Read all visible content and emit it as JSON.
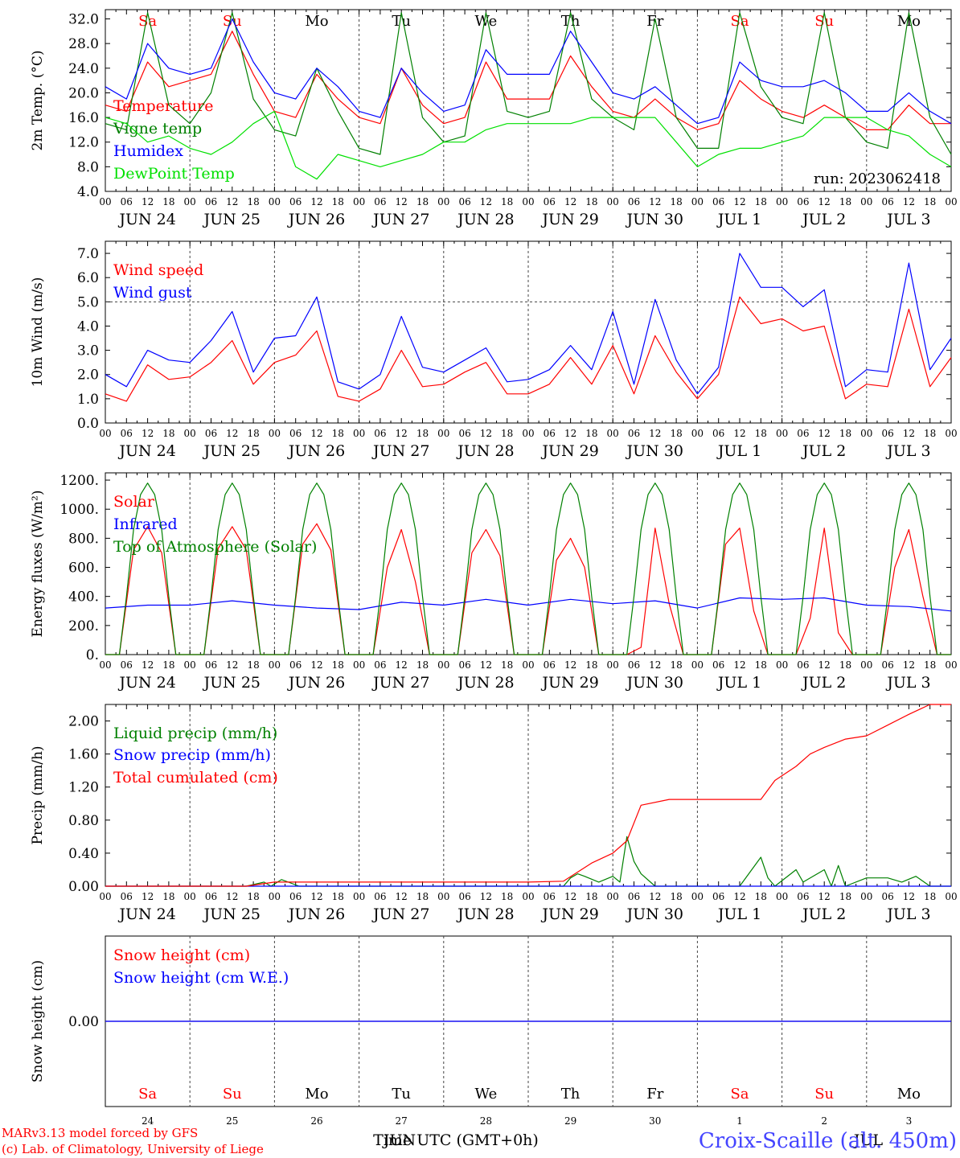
{
  "footer": {
    "model": "MARv3.13 model forced by GFS",
    "credit": "(c) Lab. of Climatology, University of Liege",
    "xlabel": "Time UTC (GMT+0h)",
    "station": "Croix-Scaille (alt. 450m)",
    "month_jun": "JUN",
    "month_jul": "JUL"
  },
  "colors": {
    "red": "#ff0000",
    "blue": "#0000ff",
    "green": "#008000",
    "lightgreen": "#00e000",
    "weekend": "#ff0000"
  },
  "hours_labels": [
    "00",
    "06",
    "12",
    "18"
  ],
  "date_labels": [
    "JUN 24",
    "JUN 25",
    "JUN 26",
    "JUN 27",
    "JUN 28",
    "JUN 29",
    "JUN 30",
    "JUL  1",
    "JUL  2",
    "JUL  3"
  ],
  "days_short": [
    "Sa",
    "Su",
    "Mo",
    "Tu",
    "We",
    "Th",
    "Fr",
    "Sa",
    "Su",
    "Mo"
  ],
  "weekend_flags": [
    true,
    true,
    false,
    false,
    false,
    false,
    false,
    true,
    true,
    false
  ],
  "day_numbers": [
    "24",
    "25",
    "26",
    "27",
    "28",
    "29",
    "30",
    "1",
    "2",
    "3"
  ],
  "chart_data": [
    {
      "id": "temperature",
      "type": "line",
      "ylabel": "2m Temp. (°C)",
      "ylim": [
        4,
        33.5
      ],
      "yticks": [
        "4.0",
        "8.0",
        "12.0",
        "16.0",
        "20.0",
        "24.0",
        "28.0",
        "32.0"
      ],
      "x_unit": "hours since JUN 24 00 UTC",
      "xlim": [
        0,
        240
      ],
      "run_label": "run: 2023062418",
      "series": [
        {
          "name": "Temperature",
          "color": "#ff0000",
          "x": [
            0,
            6,
            12,
            18,
            24,
            30,
            36,
            42,
            48,
            54,
            60,
            66,
            72,
            78,
            84,
            90,
            96,
            102,
            108,
            114,
            120,
            126,
            132,
            138,
            144,
            150,
            156,
            162,
            168,
            174,
            180,
            186,
            192,
            198,
            204,
            210,
            216,
            222,
            228,
            234,
            240
          ],
          "y": [
            18,
            17,
            25,
            21,
            22,
            23,
            30,
            23,
            17,
            16,
            23,
            19,
            16,
            15,
            24,
            18,
            15,
            16,
            25,
            19,
            19,
            19,
            26,
            21,
            17,
            16,
            19,
            16,
            14,
            15,
            22,
            19,
            17,
            16,
            18,
            16,
            14,
            14,
            18,
            15,
            15
          ]
        },
        {
          "name": "Vigne temp",
          "color": "#008000",
          "x": [
            0,
            6,
            12,
            18,
            24,
            30,
            36,
            42,
            48,
            54,
            60,
            66,
            72,
            78,
            84,
            90,
            96,
            102,
            108,
            114,
            120,
            126,
            132,
            138,
            144,
            150,
            156,
            162,
            168,
            174,
            180,
            186,
            192,
            198,
            204,
            210,
            216,
            222,
            228,
            234,
            240
          ],
          "y": [
            15,
            14,
            33,
            18,
            15,
            20,
            33,
            19,
            14,
            13,
            24,
            17,
            11,
            10,
            33,
            16,
            12,
            13,
            33,
            17,
            16,
            17,
            33,
            19,
            16,
            14,
            32,
            16,
            11,
            11,
            33,
            21,
            16,
            15,
            33,
            16,
            12,
            11,
            33,
            16,
            10
          ]
        },
        {
          "name": "Humidex",
          "color": "#0000ff",
          "x": [
            0,
            6,
            12,
            18,
            24,
            30,
            36,
            42,
            48,
            54,
            60,
            66,
            72,
            78,
            84,
            90,
            96,
            102,
            108,
            114,
            120,
            126,
            132,
            138,
            144,
            150,
            156,
            162,
            168,
            174,
            180,
            186,
            192,
            198,
            204,
            210,
            216,
            222,
            228,
            234,
            240
          ],
          "y": [
            21,
            19,
            28,
            24,
            23,
            24,
            32,
            25,
            20,
            19,
            24,
            21,
            17,
            16,
            24,
            20,
            17,
            18,
            27,
            23,
            23,
            23,
            30,
            25,
            20,
            19,
            21,
            18,
            15,
            16,
            25,
            22,
            21,
            21,
            22,
            20,
            17,
            17,
            20,
            17,
            15
          ]
        },
        {
          "name": "DewPoint Temp",
          "color": "#00e000",
          "x": [
            0,
            6,
            12,
            18,
            24,
            30,
            36,
            42,
            48,
            54,
            60,
            66,
            72,
            78,
            84,
            90,
            96,
            102,
            108,
            114,
            120,
            126,
            132,
            138,
            144,
            150,
            156,
            162,
            168,
            174,
            180,
            186,
            192,
            198,
            204,
            210,
            216,
            222,
            228,
            234,
            240
          ],
          "y": [
            16,
            15,
            12,
            13,
            11,
            10,
            12,
            15,
            17,
            8,
            6,
            10,
            9,
            8,
            9,
            10,
            12,
            12,
            14,
            15,
            15,
            15,
            15,
            16,
            16,
            16,
            16,
            12,
            8,
            10,
            11,
            11,
            12,
            13,
            16,
            16,
            16,
            14,
            13,
            10,
            8
          ]
        }
      ]
    },
    {
      "id": "wind",
      "type": "line",
      "ylabel": "10m Wind (m/s)",
      "ylim": [
        0,
        7.5
      ],
      "yticks": [
        "0.0",
        "1.0",
        "2.0",
        "3.0",
        "4.0",
        "5.0",
        "6.0",
        "7.0"
      ],
      "ref_line": 5.0,
      "x_unit": "hours since JUN 24 00 UTC",
      "xlim": [
        0,
        240
      ],
      "series": [
        {
          "name": "Wind speed",
          "color": "#ff0000",
          "x": [
            0,
            6,
            12,
            18,
            24,
            30,
            36,
            42,
            48,
            54,
            60,
            66,
            72,
            78,
            84,
            90,
            96,
            102,
            108,
            114,
            120,
            126,
            132,
            138,
            144,
            150,
            156,
            162,
            168,
            174,
            180,
            186,
            192,
            198,
            204,
            210,
            216,
            222,
            228,
            234,
            240
          ],
          "y": [
            1.2,
            0.9,
            2.4,
            1.8,
            1.9,
            2.5,
            3.4,
            1.6,
            2.5,
            2.8,
            3.8,
            1.1,
            0.9,
            1.4,
            3.0,
            1.5,
            1.6,
            2.1,
            2.5,
            1.2,
            1.2,
            1.6,
            2.7,
            1.6,
            3.2,
            1.2,
            3.6,
            2.1,
            1.0,
            2.0,
            5.2,
            4.1,
            4.3,
            3.8,
            4.0,
            1.0,
            1.6,
            1.5,
            4.7,
            1.5,
            2.7
          ]
        },
        {
          "name": "Wind gust",
          "color": "#0000ff",
          "x": [
            0,
            6,
            12,
            18,
            24,
            30,
            36,
            42,
            48,
            54,
            60,
            66,
            72,
            78,
            84,
            90,
            96,
            102,
            108,
            114,
            120,
            126,
            132,
            138,
            144,
            150,
            156,
            162,
            168,
            174,
            180,
            186,
            192,
            198,
            204,
            210,
            216,
            222,
            228,
            234,
            240
          ],
          "y": [
            2.0,
            1.5,
            3.0,
            2.6,
            2.5,
            3.4,
            4.6,
            2.1,
            3.5,
            3.6,
            5.2,
            1.7,
            1.4,
            2.0,
            4.4,
            2.3,
            2.1,
            2.6,
            3.1,
            1.7,
            1.8,
            2.2,
            3.2,
            2.2,
            4.6,
            1.6,
            5.1,
            2.6,
            1.2,
            2.3,
            7.0,
            5.6,
            5.6,
            4.8,
            5.5,
            1.5,
            2.2,
            2.1,
            6.6,
            2.2,
            3.5
          ]
        }
      ]
    },
    {
      "id": "energy",
      "type": "line",
      "ylabel": "Energy fluxes (W/m²)",
      "ylim": [
        0,
        1250
      ],
      "yticks": [
        "0.",
        "200.",
        "400.",
        "600.",
        "800.",
        "1000.",
        "1200."
      ],
      "x_unit": "hours since JUN 24 00 UTC",
      "xlim": [
        0,
        240
      ],
      "series": [
        {
          "name": "Solar",
          "color": "#ff0000",
          "x": [
            0,
            4,
            8,
            12,
            16,
            20,
            24,
            28,
            32,
            36,
            40,
            44,
            48,
            52,
            56,
            60,
            64,
            68,
            72,
            76,
            80,
            84,
            88,
            92,
            96,
            100,
            104,
            108,
            112,
            116,
            120,
            124,
            128,
            132,
            136,
            140,
            144,
            148,
            152,
            156,
            160,
            164,
            168,
            172,
            176,
            180,
            184,
            188,
            192,
            196,
            200,
            204,
            208,
            212,
            216,
            220,
            224,
            228,
            232,
            236,
            240
          ],
          "y": [
            0,
            0,
            720,
            880,
            700,
            0,
            0,
            0,
            730,
            880,
            720,
            0,
            0,
            0,
            760,
            900,
            720,
            0,
            0,
            0,
            600,
            860,
            500,
            0,
            0,
            0,
            700,
            860,
            680,
            0,
            0,
            0,
            650,
            800,
            600,
            0,
            0,
            0,
            50,
            870,
            350,
            0,
            0,
            0,
            760,
            870,
            300,
            0,
            0,
            0,
            250,
            870,
            150,
            0,
            0,
            0,
            600,
            860,
            400,
            0,
            0
          ]
        },
        {
          "name": "Infrared",
          "color": "#0000ff",
          "x": [
            0,
            12,
            24,
            36,
            48,
            60,
            72,
            84,
            96,
            108,
            120,
            132,
            144,
            156,
            168,
            180,
            192,
            204,
            216,
            228,
            240
          ],
          "y": [
            320,
            340,
            340,
            370,
            340,
            320,
            310,
            360,
            340,
            380,
            340,
            380,
            350,
            370,
            320,
            390,
            380,
            390,
            340,
            330,
            300
          ]
        },
        {
          "name": "Top of Atmosphere (Solar)",
          "color": "#008000",
          "x": [
            0,
            2,
            4,
            6,
            8,
            10,
            12,
            14,
            16,
            18,
            20,
            22,
            24
          ],
          "y": [
            0,
            0,
            0,
            400,
            860,
            1100,
            1180,
            1100,
            860,
            400,
            0,
            0,
            0
          ],
          "repeat_days": 10
        }
      ]
    },
    {
      "id": "precip",
      "type": "line",
      "ylabel": "Precip (mm/h)",
      "ylim": [
        0,
        2.2
      ],
      "yticks": [
        "0.00",
        "0.40",
        "0.80",
        "1.20",
        "1.60",
        "2.00"
      ],
      "x_unit": "hours since JUN 24 00 UTC",
      "xlim": [
        0,
        240
      ],
      "series": [
        {
          "name": "Liquid precip (mm/h)",
          "color": "#008000",
          "x": [
            0,
            40,
            45,
            47,
            50,
            55,
            130,
            132,
            134,
            136,
            140,
            144,
            146,
            148,
            150,
            152,
            156,
            180,
            186,
            188,
            190,
            196,
            198,
            204,
            206,
            208,
            210,
            216,
            222,
            226,
            230,
            234,
            240
          ],
          "y": [
            0,
            0,
            0.05,
            0,
            0.08,
            0,
            0,
            0.1,
            0.15,
            0.12,
            0.05,
            0.12,
            0.05,
            0.6,
            0.3,
            0.15,
            0,
            0,
            0.35,
            0.1,
            0,
            0.2,
            0.05,
            0.2,
            0,
            0.25,
            0,
            0.1,
            0.1,
            0.05,
            0.12,
            0,
            0
          ]
        },
        {
          "name": "Snow precip (mm/h)",
          "color": "#0000ff",
          "x": [
            0,
            240
          ],
          "y": [
            0,
            0
          ]
        },
        {
          "name": "Total cumulated (cm)",
          "color": "#ff0000",
          "x": [
            0,
            40,
            48,
            120,
            130,
            138,
            144,
            148,
            152,
            160,
            170,
            186,
            190,
            196,
            200,
            204,
            210,
            216,
            222,
            228,
            234,
            240
          ],
          "y": [
            0,
            0,
            0.05,
            0.05,
            0.06,
            0.28,
            0.4,
            0.55,
            0.98,
            1.05,
            1.05,
            1.05,
            1.28,
            1.45,
            1.6,
            1.68,
            1.78,
            1.82,
            1.95,
            2.08,
            2.2,
            2.2
          ]
        }
      ]
    },
    {
      "id": "snow",
      "type": "line",
      "ylabel": "Snow height (cm)",
      "ylim": [
        -1,
        1
      ],
      "yticks": [
        "0.00"
      ],
      "x_unit": "hours since JUN 24 00 UTC",
      "xlim": [
        0,
        240
      ],
      "series": [
        {
          "name": "Snow height (cm)",
          "color": "#ff0000",
          "x": [
            0,
            240
          ],
          "y": [
            0,
            0
          ]
        },
        {
          "name": "Snow height (cm W.E.)",
          "color": "#0000ff",
          "x": [
            0,
            240
          ],
          "y": [
            0,
            0
          ]
        }
      ]
    }
  ]
}
